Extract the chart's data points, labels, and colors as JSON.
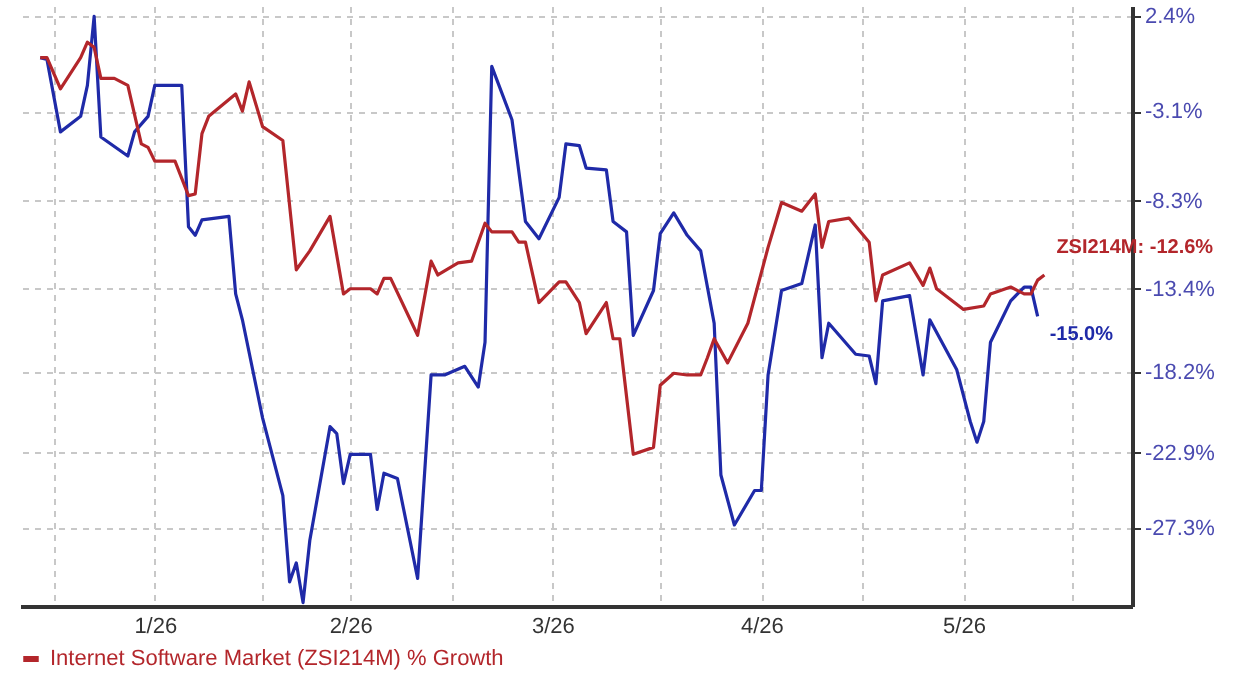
{
  "chart_data": {
    "type": "line",
    "xlim": [
      "2025-12-27",
      "2026-06-10"
    ],
    "xticks": [
      {
        "value": "2026-01-01",
        "label": null
      },
      {
        "value": "2026-01-16",
        "label": "1/26"
      },
      {
        "value": "2026-02-01",
        "label": null
      },
      {
        "value": "2026-02-14",
        "label": "2/26"
      },
      {
        "value": "2026-03-01",
        "label": null
      },
      {
        "value": "2026-03-16",
        "label": "3/26"
      },
      {
        "value": "2026-04-01",
        "label": null
      },
      {
        "value": "2026-04-16",
        "label": "4/26"
      },
      {
        "value": "2026-05-01",
        "label": null
      },
      {
        "value": "2026-05-16",
        "label": "5/26"
      },
      {
        "value": "2026-06-01",
        "label": null
      }
    ],
    "ylim": [
      -31.8,
      3.0
    ],
    "yticks": [
      {
        "value": 2.4,
        "label": "2.4%"
      },
      {
        "value": -3.1,
        "label": "-3.1%"
      },
      {
        "value": -8.3,
        "label": "-8.3%"
      },
      {
        "value": -13.4,
        "label": "-13.4%"
      },
      {
        "value": -18.2,
        "label": "-18.2%"
      },
      {
        "value": -22.9,
        "label": "-22.9%"
      },
      {
        "value": -27.3,
        "label": "-27.3%"
      }
    ],
    "grid": true,
    "legend": "bottom",
    "line_style": "solid",
    "annotations": [
      {
        "text": "ZSI214M: -12.6%",
        "x": "2026-05-28",
        "y": -12.6
      },
      {
        "text": "-15.0%",
        "x": "2026-05-27",
        "y": -15.0
      }
    ],
    "series": [
      {
        "color": "#1f2aa8",
        "x": [
          "2025-12-30",
          "2025-12-31",
          "2026-01-02",
          "2026-01-05",
          "2026-01-06",
          "2026-01-07",
          "2026-01-08",
          "2026-01-12",
          "2026-01-13",
          "2026-01-15",
          "2026-01-16",
          "2026-01-20",
          "2026-01-21",
          "2026-01-22",
          "2026-01-23",
          "2026-01-27",
          "2026-01-28",
          "2026-01-29",
          "2026-02-01",
          "2026-02-04",
          "2026-02-05",
          "2026-02-06",
          "2026-02-07",
          "2026-02-08",
          "2026-02-11",
          "2026-02-12",
          "2026-02-13",
          "2026-02-14",
          "2026-02-17",
          "2026-02-18",
          "2026-02-19",
          "2026-02-21",
          "2026-02-24",
          "2026-02-26",
          "2026-02-28",
          "2026-03-03",
          "2026-03-05",
          "2026-03-06",
          "2026-03-07",
          "2026-03-10",
          "2026-03-12",
          "2026-03-14",
          "2026-03-17",
          "2026-03-18",
          "2026-03-20",
          "2026-03-21",
          "2026-03-24",
          "2026-03-25",
          "2026-03-27",
          "2026-03-28",
          "2026-03-31",
          "2026-04-01",
          "2026-04-03",
          "2026-04-05",
          "2026-04-07",
          "2026-04-09",
          "2026-04-10",
          "2026-04-12",
          "2026-04-15",
          "2026-04-16",
          "2026-04-17",
          "2026-04-19",
          "2026-04-22",
          "2026-04-24",
          "2026-04-25",
          "2026-04-26",
          "2026-04-30",
          "2026-05-02",
          "2026-05-03",
          "2026-05-04",
          "2026-05-08",
          "2026-05-10",
          "2026-05-11",
          "2026-05-15",
          "2026-05-17",
          "2026-05-18",
          "2026-05-19",
          "2026-05-20",
          "2026-05-23",
          "2026-05-25",
          "2026-05-26",
          "2026-05-27"
        ],
        "values": [
          0.0,
          -0.1,
          -4.3,
          -3.4,
          -1.6,
          2.4,
          -4.6,
          -5.7,
          -4.3,
          -3.4,
          -1.6,
          -1.6,
          -9.8,
          -10.3,
          -9.4,
          -9.2,
          -13.7,
          -15.2,
          -20.9,
          -25.4,
          -30.4,
          -29.3,
          -31.6,
          -28.0,
          -21.4,
          -21.8,
          -24.7,
          -23.0,
          -23.0,
          -26.2,
          -24.1,
          -24.4,
          -30.2,
          -18.4,
          -18.4,
          -17.9,
          -19.1,
          -16.5,
          -0.5,
          -3.6,
          -9.5,
          -10.5,
          -8.1,
          -5.0,
          -5.1,
          -6.4,
          -6.5,
          -9.5,
          -10.1,
          -16.1,
          -13.5,
          -10.2,
          -9.0,
          -10.3,
          -11.2,
          -15.4,
          -24.2,
          -27.1,
          -25.1,
          -25.1,
          -18.4,
          -13.5,
          -13.1,
          -9.7,
          -17.4,
          -15.4,
          -17.2,
          -17.3,
          -18.9,
          -14.1,
          -13.8,
          -18.4,
          -15.2,
          -18.1,
          -21.1,
          -22.3,
          -21.1,
          -16.5,
          -14.1,
          -13.3,
          -13.3,
          -15.0
        ]
      },
      {
        "name": "Internet Software Market (ZSI214M) % Growth",
        "color": "#b3262b",
        "x": [
          "2025-12-30",
          "2025-12-31",
          "2026-01-02",
          "2026-01-05",
          "2026-01-06",
          "2026-01-07",
          "2026-01-08",
          "2026-01-10",
          "2026-01-12",
          "2026-01-14",
          "2026-01-15",
          "2026-01-16",
          "2026-01-19",
          "2026-01-21",
          "2026-01-22",
          "2026-01-23",
          "2026-01-24",
          "2026-01-28",
          "2026-01-29",
          "2026-01-30",
          "2026-02-01",
          "2026-02-04",
          "2026-02-06",
          "2026-02-08",
          "2026-02-11",
          "2026-02-13",
          "2026-02-14",
          "2026-02-17",
          "2026-02-18",
          "2026-02-19",
          "2026-02-20",
          "2026-02-24",
          "2026-02-26",
          "2026-02-27",
          "2026-03-02",
          "2026-03-04",
          "2026-03-06",
          "2026-03-07",
          "2026-03-10",
          "2026-03-11",
          "2026-03-12",
          "2026-03-14",
          "2026-03-17",
          "2026-03-18",
          "2026-03-20",
          "2026-03-21",
          "2026-03-24",
          "2026-03-25",
          "2026-03-26",
          "2026-03-28",
          "2026-03-31",
          "2026-04-01",
          "2026-04-03",
          "2026-04-05",
          "2026-04-07",
          "2026-04-08",
          "2026-04-09",
          "2026-04-11",
          "2026-04-14",
          "2026-04-17",
          "2026-04-19",
          "2026-04-22",
          "2026-04-24",
          "2026-04-25",
          "2026-04-26",
          "2026-04-29",
          "2026-05-02",
          "2026-05-03",
          "2026-05-04",
          "2026-05-08",
          "2026-05-10",
          "2026-05-11",
          "2026-05-12",
          "2026-05-16",
          "2026-05-19",
          "2026-05-20",
          "2026-05-23",
          "2026-05-25",
          "2026-05-26",
          "2026-05-27",
          "2026-05-28"
        ],
        "values": [
          0.0,
          0.0,
          -1.8,
          0.0,
          0.9,
          0.6,
          -1.2,
          -1.2,
          -1.6,
          -5.0,
          -5.2,
          -6.0,
          -6.0,
          -8.0,
          -7.9,
          -4.4,
          -3.4,
          -2.1,
          -3.1,
          -1.4,
          -4.0,
          -4.8,
          -12.3,
          -11.2,
          -9.2,
          -13.7,
          -13.4,
          -13.4,
          -13.7,
          -12.8,
          -12.8,
          -16.1,
          -11.8,
          -12.6,
          -11.9,
          -11.8,
          -9.6,
          -10.1,
          -10.1,
          -10.7,
          -10.7,
          -14.2,
          -13.0,
          -13.0,
          -14.2,
          -16.0,
          -14.2,
          -16.3,
          -16.3,
          -23.0,
          -22.6,
          -19.0,
          -18.3,
          -18.4,
          -18.4,
          -17.4,
          -16.3,
          -17.7,
          -15.4,
          -11.0,
          -8.4,
          -8.9,
          -7.9,
          -11.0,
          -9.5,
          -9.3,
          -10.7,
          -14.1,
          -12.6,
          -11.9,
          -13.2,
          -12.2,
          -13.4,
          -14.6,
          -14.4,
          -13.7,
          -13.3,
          -13.7,
          -13.7,
          -12.9,
          -12.6
        ]
      }
    ]
  }
}
